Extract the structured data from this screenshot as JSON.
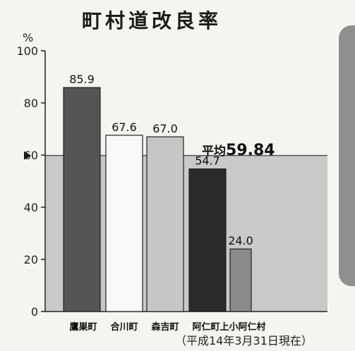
{
  "title": "町村道改良率",
  "unit": "%",
  "footnote": "（平成14年3月31日現在）",
  "average": {
    "label": "平均",
    "value_text": "59.84",
    "value": 59.84
  },
  "colors": {
    "bar_1": "#555555",
    "bar_2": "#f8f8f8",
    "bar_3": "#c6c6c6",
    "bar_4": "#2a2a2a",
    "bar_5": "#8a8a8a",
    "average_band": "#c9c9c9",
    "side_box": "#8f8f8f"
  },
  "chart_data": {
    "type": "bar",
    "title": "町村道改良率",
    "ylabel": "%",
    "xlabel": "",
    "categories": [
      "鷹巣町",
      "合川町",
      "森吉町",
      "阿仁町",
      "上小阿仁村"
    ],
    "values": [
      85.9,
      67.6,
      67.0,
      54.7,
      24.0
    ],
    "value_labels": [
      "85.9",
      "67.6",
      "67.0",
      "54.7",
      "24.0"
    ],
    "ylim": [
      0,
      100
    ],
    "yticks": [
      0,
      20,
      40,
      60,
      80,
      100
    ],
    "ytick_labels": [
      "0",
      "20",
      "40",
      "60",
      "80",
      "100"
    ],
    "grid": false,
    "reference_line": {
      "label": "平均",
      "value": 59.84
    }
  }
}
